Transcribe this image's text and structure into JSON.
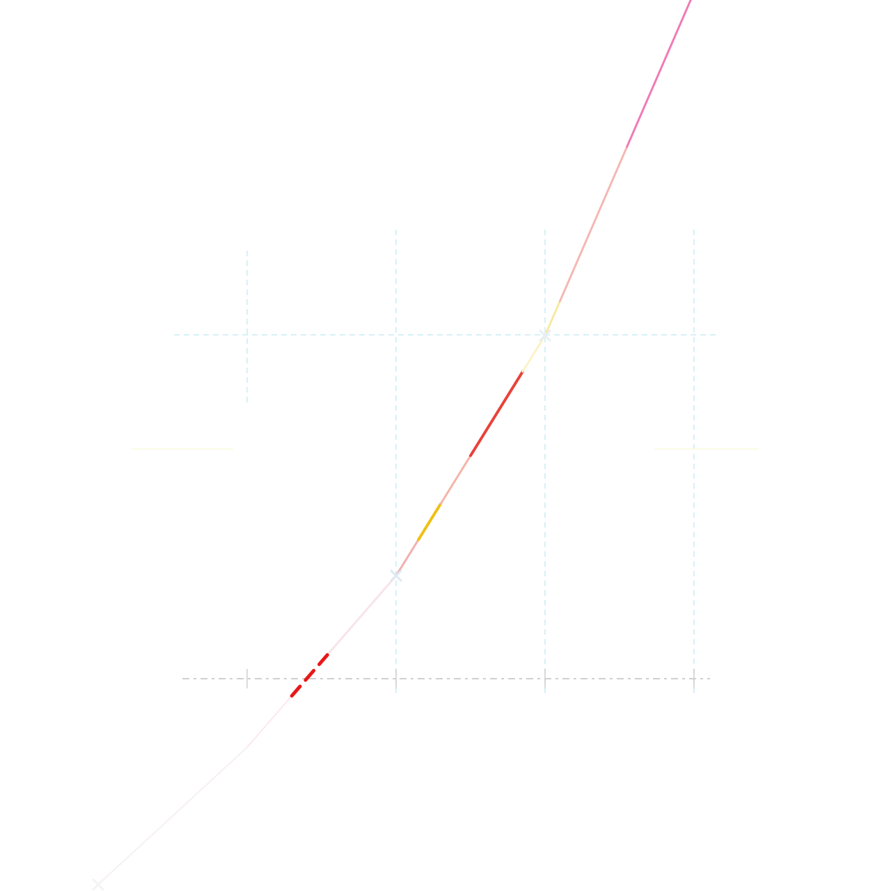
{
  "chart_data": {
    "type": "line",
    "title": "",
    "xlabel": "",
    "ylabel": "",
    "grid": true,
    "legend": "none",
    "xlim": [
      -1,
      4.5
    ],
    "ylim": [
      -0.6,
      2.4
    ],
    "x_ticks": [
      0,
      1,
      2,
      3
    ],
    "series": [
      {
        "x": [
          -1,
          0,
          1,
          2,
          3,
          4
        ],
        "y": [
          -0.6,
          -0.2,
          0.3,
          1.0,
          2.0,
          3.0
        ],
        "color": "#f07bb6"
      }
    ],
    "markers": [
      {
        "x": -1,
        "y": -0.6,
        "color": "#f4f4f4"
      },
      {
        "x": 1,
        "y": 0.3,
        "color": "#dfe8f2"
      },
      {
        "x": 2,
        "y": 1.0,
        "color": "#e6eef6"
      },
      {
        "x": 3,
        "y": 2.0,
        "color": "#1a8de6"
      }
    ],
    "colors": {
      "accent_pink": "#f07bb6",
      "accent_red": "#e8423a",
      "accent_blue": "#1a8de6",
      "grid_cyan": "#d6f1f6"
    }
  }
}
